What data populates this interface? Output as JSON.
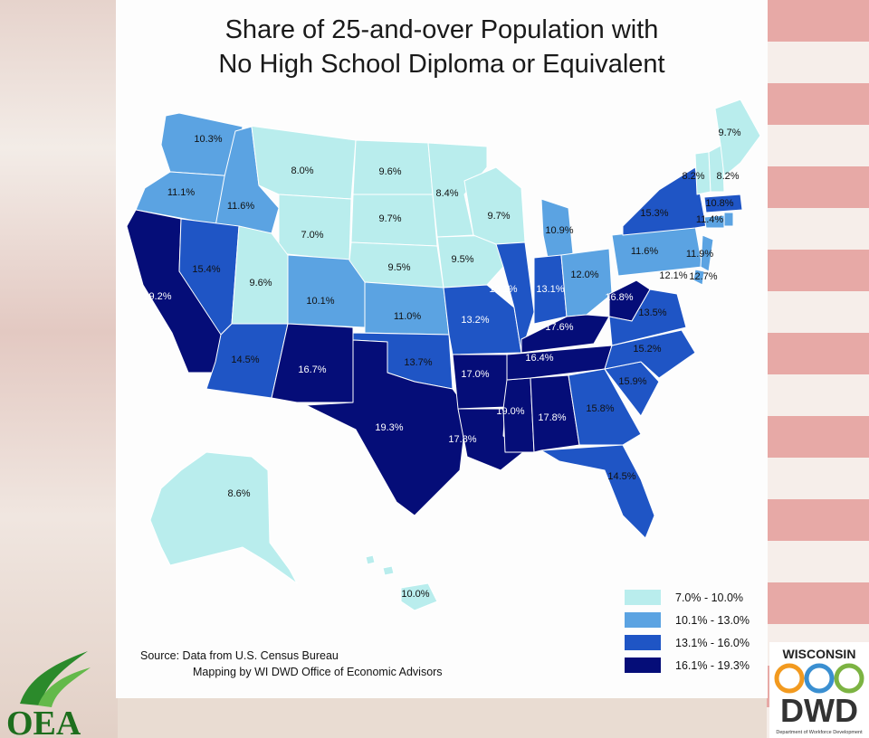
{
  "title_line1": "Share of 25-and-over Population with",
  "title_line2": "No High School Diploma or Equivalent",
  "legend": [
    {
      "label": "7.0% - 10.0%",
      "color": "#b9eded"
    },
    {
      "label": "10.1% - 13.0%",
      "color": "#5ba3e2"
    },
    {
      "label": "13.1% - 16.0%",
      "color": "#1f55c5"
    },
    {
      "label": "16.1% - 19.3%",
      "color": "#050d78"
    }
  ],
  "source_line1": "Source:  Data from U.S. Census Bureau",
  "source_line2": "Mapping by WI DWD Office of Economic Advisors",
  "logos": {
    "oea_text": "OEA",
    "dwd_top": "WISCONSIN",
    "dwd_main": "DWD",
    "dwd_sub": "Department of Workforce Development"
  },
  "states": {
    "WA": "10.3%",
    "OR": "11.1%",
    "CA": "19.2%",
    "ID": "11.6%",
    "NV": "15.4%",
    "MT": "8.0%",
    "WY": "7.0%",
    "UT": "9.6%",
    "AZ": "14.5%",
    "CO": "10.1%",
    "NM": "16.7%",
    "ND": "9.6%",
    "SD": "9.7%",
    "NE": "9.5%",
    "KS": "11.0%",
    "OK": "13.7%",
    "TX": "19.3%",
    "MN": "8.4%",
    "IA": "9.5%",
    "MO": "13.2%",
    "AR": "17.0%",
    "LA": "17.8%",
    "WI": "9.7%",
    "IL": "13.1%",
    "MS": "19.0%",
    "MI": "10.9%",
    "IN": "13.1%",
    "KY": "17.6%",
    "TN": "16.4%",
    "AL": "17.8%",
    "OH": "12.0%",
    "WV": "16.8%",
    "GA": "15.8%",
    "FL": "14.5%",
    "SC": "15.9%",
    "NC": "15.2%",
    "VA": "13.5%",
    "PA": "11.6%",
    "NY": "15.3%",
    "VT": "8.2%",
    "NH": "8.2%",
    "ME": "9.7%",
    "MA": "10.8%",
    "RI": "11.4%",
    "CT": "11.9%",
    "NJ": "12.1%",
    "DE": "12.7%",
    "AK": "8.6%",
    "HI": "10.0%"
  }
}
